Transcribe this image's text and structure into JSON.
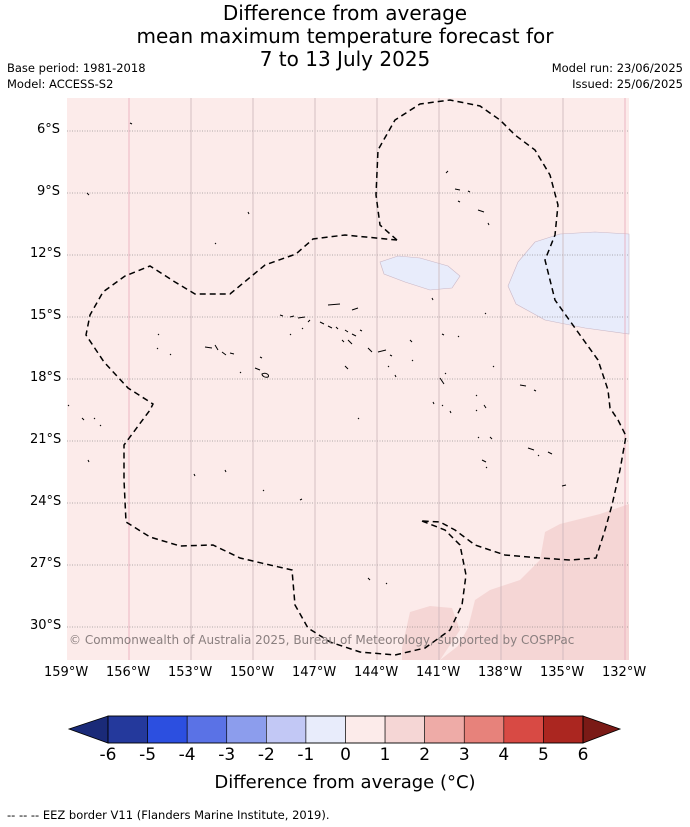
{
  "header": {
    "title_line1": "Difference from average",
    "title_line2": "mean maximum temperature forecast for",
    "title_line3": "7 to 13 July 2025",
    "base_period": "Base period: 1981-2018",
    "model": "Model: ACCESS-S2",
    "model_run": "Model run: 23/06/2025",
    "issued": "Issued: 25/06/2025"
  },
  "map": {
    "lon_labels": [
      "159°W",
      "156°W",
      "153°W",
      "150°W",
      "147°W",
      "144°W",
      "141°W",
      "138°W",
      "135°W",
      "132°W"
    ],
    "lat_labels": [
      "6°S",
      "9°S",
      "12°S",
      "15°S",
      "18°S",
      "21°S",
      "24°S",
      "27°S",
      "30°S"
    ],
    "copyright": "© Commonwealth of Australia 2025, Bureau of Meteorology, supported by COSPPac",
    "colors": {
      "background_anomaly_0_to_1": "#fcebea",
      "anomaly_1_to_2": "#f5d6d5",
      "anomaly_minus1_to_0": "#e8ecfb",
      "grid": "#555555",
      "eez_border": "#000000"
    }
  },
  "colorbar": {
    "ticks": [
      "-6",
      "-5",
      "-4",
      "-3",
      "-2",
      "-1",
      "0",
      "1",
      "2",
      "3",
      "4",
      "5",
      "6"
    ],
    "colors": [
      "#24399c",
      "#2c4fe0",
      "#5a72e6",
      "#8c9ded",
      "#c2c8f5",
      "#e8ecfb",
      "#fcebea",
      "#f5d6d5",
      "#eeaba7",
      "#e7827b",
      "#d84a44",
      "#ab2620"
    ],
    "extend_low": "#1a2a78",
    "extend_high": "#7a1a16",
    "label": "Difference from average (°C)"
  },
  "footer": {
    "eez_legend": "--  --  -- EEZ border V11 (Flanders Marine Institute, 2019)."
  }
}
